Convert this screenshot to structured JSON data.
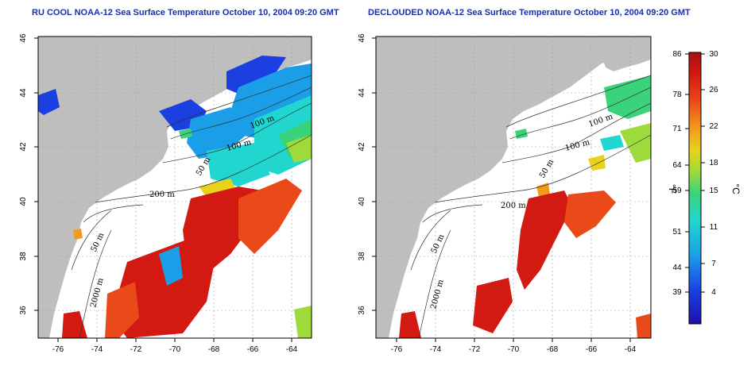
{
  "panels": [
    {
      "id": "left",
      "title": "RU COOL NOAA-12 Sea Surface Temperature October 10, 2004 09:20 GMT"
    },
    {
      "id": "right",
      "title": "DECLOUDED NOAA-12 Sea Surface Temperature October 10, 2004 09:20 GMT"
    }
  ],
  "axes": {
    "lon_ticks": [
      "-76",
      "-74",
      "-72",
      "-70",
      "-68",
      "-66",
      "-64"
    ],
    "lat_ticks": [
      "46",
      "44",
      "42",
      "40",
      "38",
      "36"
    ]
  },
  "contours": {
    "labels_left": [
      "100 m",
      "100 m",
      "50 m",
      "200 m",
      "50 m",
      "2000 m"
    ],
    "labels_right": [
      "100 m",
      "100 m",
      "50 m",
      "200 m",
      "50 m",
      "2000 m"
    ]
  },
  "colorbar": {
    "fahrenheit_ticks": [
      "86",
      "78",
      "71",
      "64",
      "59",
      "51",
      "44",
      "39"
    ],
    "celsius_ticks": [
      "30",
      "26",
      "22",
      "18",
      "15",
      "11",
      "7",
      "4"
    ],
    "unit_f": "°F",
    "unit_c": "°C"
  },
  "colors": {
    "title": "#1a2fa8",
    "land": "#bebebe",
    "grid": "#a0a0a0"
  }
}
